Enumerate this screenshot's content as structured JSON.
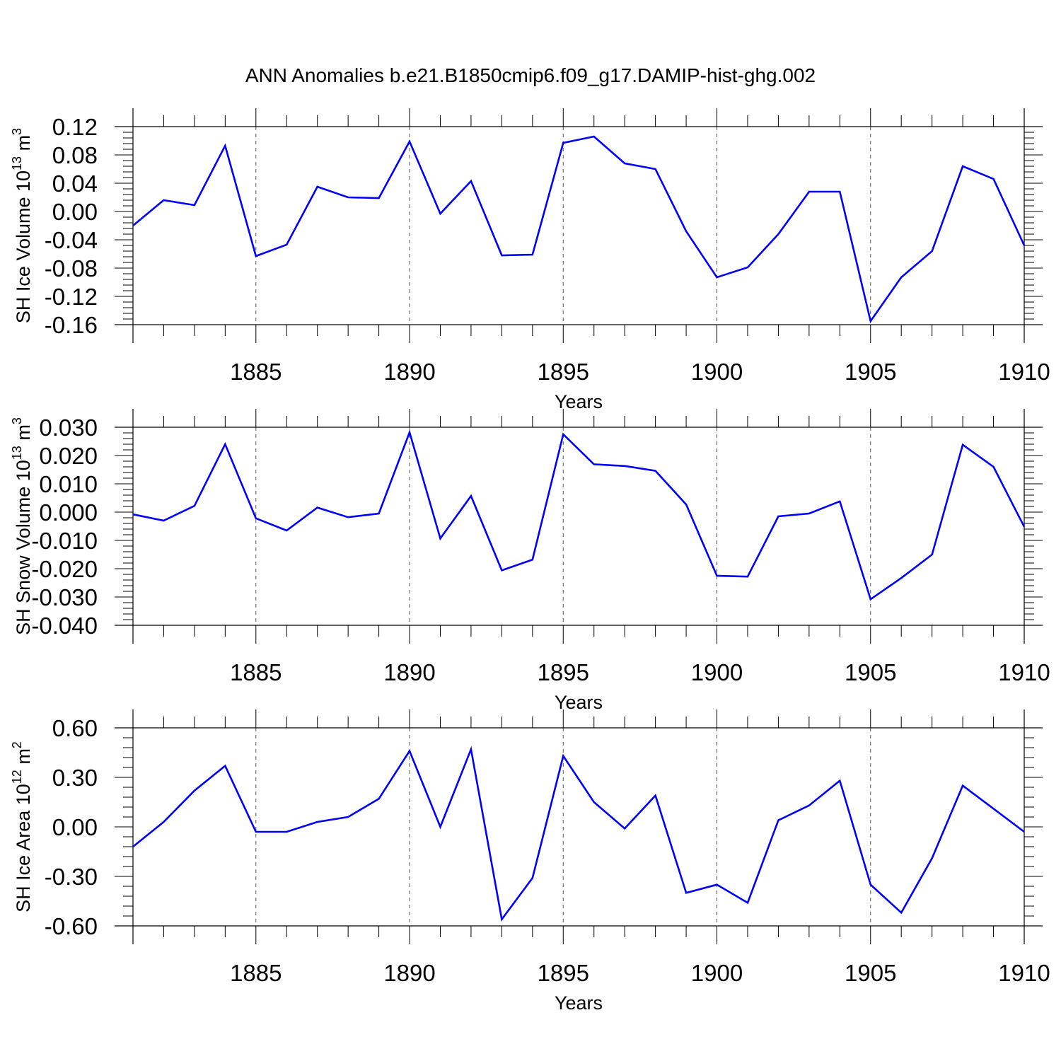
{
  "title": "ANN Anomalies b.e21.B1850cmip6.f09_g17.DAMIP-hist-ghg.002",
  "chart_data": [
    {
      "type": "line",
      "ylabel": "SH Ice Volume 10",
      "ylabel_exp": "13",
      "ylabel_unit": " m",
      "ylabel_unit_exp": "3",
      "xlabel": "Years",
      "xlim": [
        1881,
        1910
      ],
      "ylim": [
        -0.16,
        0.12
      ],
      "yticks": [
        0.12,
        0.08,
        0.04,
        0.0,
        -0.04,
        -0.08,
        -0.12,
        -0.16
      ],
      "ytick_labels": [
        "0.12",
        "0.08",
        "0.04",
        "0.00",
        "-0.04",
        "-0.08",
        "-0.12",
        "-0.16"
      ],
      "xticks": [
        1885,
        1890,
        1895,
        1900,
        1905,
        1910
      ],
      "xtick_labels": [
        "1885",
        "1890",
        "1895",
        "1900",
        "1905",
        "1910"
      ],
      "series": [
        {
          "name": "SH Ice Volume",
          "color": "#0000ff",
          "x": [
            1881,
            1882,
            1883,
            1884,
            1885,
            1886,
            1887,
            1888,
            1889,
            1890,
            1891,
            1892,
            1893,
            1894,
            1895,
            1896,
            1897,
            1898,
            1899,
            1900,
            1901,
            1902,
            1903,
            1904,
            1905,
            1906,
            1907,
            1908,
            1909,
            1910
          ],
          "values": [
            -0.02,
            0.016,
            0.009,
            0.093,
            -0.063,
            -0.047,
            0.035,
            0.02,
            0.019,
            0.099,
            -0.003,
            0.043,
            -0.062,
            -0.061,
            0.097,
            0.106,
            0.068,
            0.06,
            -0.028,
            -0.093,
            -0.079,
            -0.032,
            0.028,
            0.028,
            -0.155,
            -0.093,
            -0.056,
            0.064,
            0.046,
            -0.048
          ]
        }
      ]
    },
    {
      "type": "line",
      "ylabel": "SH Snow Volume 10",
      "ylabel_exp": "13",
      "ylabel_unit": " m",
      "ylabel_unit_exp": "3",
      "xlabel": "Years",
      "xlim": [
        1881,
        1910
      ],
      "ylim": [
        -0.04,
        0.03
      ],
      "yticks": [
        0.03,
        0.02,
        0.01,
        0.0,
        -0.01,
        -0.02,
        -0.03,
        -0.04
      ],
      "ytick_labels": [
        "0.030",
        "0.020",
        "0.010",
        "0.000",
        "-0.010",
        "-0.020",
        "-0.030",
        "-0.040"
      ],
      "xticks": [
        1885,
        1890,
        1895,
        1900,
        1905,
        1910
      ],
      "xtick_labels": [
        "1885",
        "1890",
        "1895",
        "1900",
        "1905",
        "1910"
      ],
      "series": [
        {
          "name": "SH Snow Volume",
          "color": "#0000ff",
          "x": [
            1881,
            1882,
            1883,
            1884,
            1885,
            1886,
            1887,
            1888,
            1889,
            1890,
            1891,
            1892,
            1893,
            1894,
            1895,
            1896,
            1897,
            1898,
            1899,
            1900,
            1901,
            1902,
            1903,
            1904,
            1905,
            1906,
            1907,
            1908,
            1909,
            1910
          ],
          "values": [
            -0.0008,
            -0.003,
            0.0022,
            0.024,
            -0.0022,
            -0.0065,
            0.0016,
            -0.0018,
            -0.0005,
            0.0282,
            -0.0093,
            0.0057,
            -0.0206,
            -0.0168,
            0.0275,
            0.0169,
            0.0163,
            0.0146,
            0.0027,
            -0.0225,
            -0.0228,
            -0.0015,
            -0.0005,
            0.0038,
            -0.0308,
            -0.0233,
            -0.015,
            0.0238,
            0.016,
            -0.0052
          ]
        }
      ]
    },
    {
      "type": "line",
      "ylabel": "SH Ice Area 10",
      "ylabel_exp": "12",
      "ylabel_unit": " m",
      "ylabel_unit_exp": "2",
      "xlabel": "Years",
      "xlim": [
        1881,
        1910
      ],
      "ylim": [
        -0.6,
        0.6
      ],
      "yticks": [
        0.6,
        0.3,
        0.0,
        -0.3,
        -0.6
      ],
      "ytick_labels": [
        "0.60",
        "0.30",
        "0.00",
        "-0.30",
        "-0.60"
      ],
      "xticks": [
        1885,
        1890,
        1895,
        1900,
        1905,
        1910
      ],
      "xtick_labels": [
        "1885",
        "1890",
        "1895",
        "1900",
        "1905",
        "1910"
      ],
      "series": [
        {
          "name": "SH Ice Area",
          "color": "#0000ff",
          "x": [
            1881,
            1882,
            1883,
            1884,
            1885,
            1886,
            1887,
            1888,
            1889,
            1890,
            1891,
            1892,
            1893,
            1894,
            1895,
            1896,
            1897,
            1898,
            1899,
            1900,
            1901,
            1902,
            1903,
            1904,
            1905,
            1906,
            1907,
            1908,
            1909,
            1910
          ],
          "values": [
            -0.12,
            0.03,
            0.22,
            0.37,
            -0.03,
            -0.03,
            0.03,
            0.06,
            0.17,
            0.46,
            0.0,
            0.47,
            -0.56,
            -0.31,
            0.43,
            0.15,
            -0.01,
            0.19,
            -0.4,
            -0.35,
            -0.46,
            0.04,
            0.13,
            0.28,
            -0.35,
            -0.52,
            -0.19,
            0.25,
            0.11,
            -0.03
          ]
        }
      ]
    }
  ]
}
